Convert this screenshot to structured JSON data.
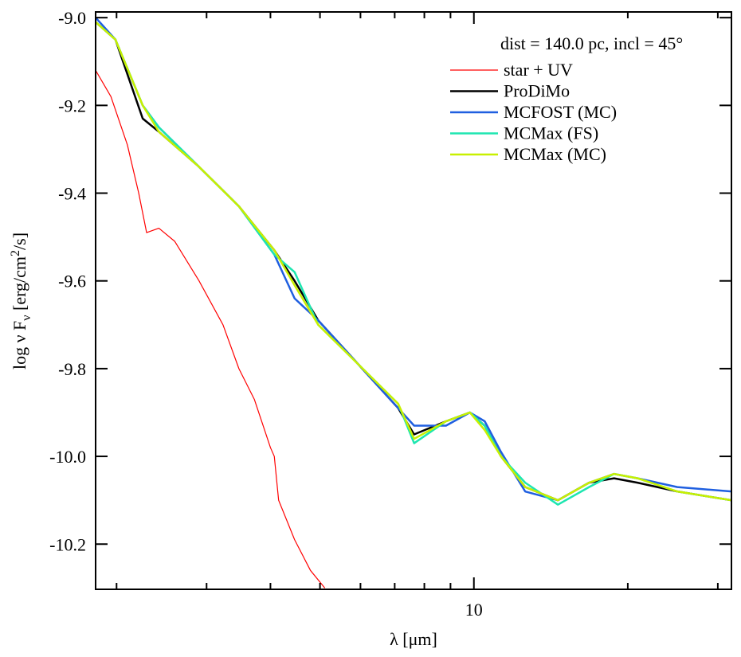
{
  "chart_data": {
    "type": "line",
    "annotation": "dist = 140.0 pc,  incl = 45°",
    "xlabel": "λ [μm]",
    "ylabel": [
      "log ν F",
      "ν",
      " [erg/cm",
      "2",
      "/s]"
    ],
    "xscale": "log",
    "xlim": [
      1.82,
      31.9
    ],
    "ylim": [
      -10.303,
      -8.987
    ],
    "xticks": [
      10
    ],
    "xminorticks": [
      2,
      3,
      4,
      5,
      6,
      7,
      8,
      9,
      20,
      30
    ],
    "yticks": [
      {
        "value": -9.0,
        "label": "-9.0"
      },
      -9.2,
      -9.4,
      -9.6,
      -9.8,
      {
        "value": -10.0,
        "label": "-10.0"
      },
      -10.2
    ],
    "legend": "top-right",
    "series": [
      {
        "name": "star + UV",
        "color": "#ff0000",
        "width": 1.2,
        "x": [
          1.82,
          1.95,
          2.1,
          2.21,
          2.29,
          2.42,
          2.6,
          2.9,
          3.23,
          3.47,
          3.72,
          4.0,
          4.07,
          4.15,
          4.46,
          4.79,
          5.11
        ],
        "values": [
          -9.12,
          -9.18,
          -9.29,
          -9.4,
          -9.49,
          -9.48,
          -9.51,
          -9.6,
          -9.7,
          -9.8,
          -9.87,
          -9.98,
          -10.0,
          -10.1,
          -10.19,
          -10.26,
          -10.3
        ]
      },
      {
        "name": "ProDiMo",
        "color": "#000000",
        "width": 2.5,
        "x": [
          1.82,
          1.99,
          2.25,
          2.42,
          2.9,
          3.47,
          4.07,
          4.46,
          4.96,
          5.94,
          7.11,
          7.64,
          8.82,
          9.82,
          10.5,
          11.3,
          12.6,
          14.6,
          16.8,
          18.8,
          20.9,
          25.0,
          31.9
        ],
        "values": [
          -9.01,
          -9.05,
          -9.23,
          -9.26,
          -9.34,
          -9.43,
          -9.53,
          -9.6,
          -9.69,
          -9.79,
          -9.89,
          -9.95,
          -9.92,
          -9.9,
          -9.93,
          -10.0,
          -10.07,
          -10.1,
          -10.06,
          -10.05,
          -10.06,
          -10.08,
          -10.1
        ]
      },
      {
        "name": "MCFOST (MC)",
        "color": "#1f5fe0",
        "width": 2.5,
        "x": [
          1.82,
          1.99,
          2.25,
          2.42,
          2.9,
          3.47,
          4.07,
          4.46,
          4.96,
          5.94,
          7.11,
          7.64,
          8.82,
          9.82,
          10.5,
          11.3,
          12.6,
          14.6,
          16.8,
          18.8,
          20.9,
          25.0,
          31.9
        ],
        "values": [
          -9.0,
          -9.05,
          -9.2,
          -9.25,
          -9.34,
          -9.43,
          -9.54,
          -9.64,
          -9.69,
          -9.79,
          -9.89,
          -9.93,
          -9.93,
          -9.9,
          -9.92,
          -9.99,
          -10.08,
          -10.1,
          -10.06,
          -10.04,
          -10.05,
          -10.07,
          -10.08
        ]
      },
      {
        "name": "MCMax (FS)",
        "color": "#1de6b0",
        "width": 2.5,
        "x": [
          1.82,
          1.99,
          2.25,
          2.42,
          2.9,
          3.47,
          4.07,
          4.46,
          4.96,
          5.94,
          7.11,
          7.64,
          8.82,
          9.82,
          10.5,
          11.3,
          12.6,
          14.6,
          16.8,
          18.8,
          20.9,
          25.0,
          31.9
        ],
        "values": [
          -9.01,
          -9.05,
          -9.2,
          -9.25,
          -9.34,
          -9.43,
          -9.54,
          -9.58,
          -9.7,
          -9.79,
          -9.88,
          -9.97,
          -9.92,
          -9.9,
          -9.93,
          -10.0,
          -10.06,
          -10.11,
          -10.07,
          -10.04,
          -10.05,
          -10.08,
          -10.1
        ]
      },
      {
        "name": "MCMax (MC)",
        "color": "#c8f000",
        "width": 2.5,
        "x": [
          1.82,
          1.99,
          2.25,
          2.42,
          2.9,
          3.47,
          4.07,
          4.46,
          4.96,
          5.94,
          7.11,
          7.64,
          8.82,
          9.82,
          10.5,
          11.3,
          12.6,
          14.6,
          16.8,
          18.8,
          20.9,
          25.0,
          31.9
        ],
        "values": [
          -9.01,
          -9.05,
          -9.2,
          -9.26,
          -9.34,
          -9.43,
          -9.53,
          -9.61,
          -9.7,
          -9.79,
          -9.88,
          -9.96,
          -9.92,
          -9.9,
          -9.94,
          -10.0,
          -10.07,
          -10.1,
          -10.06,
          -10.04,
          -10.05,
          -10.08,
          -10.1
        ]
      }
    ]
  }
}
